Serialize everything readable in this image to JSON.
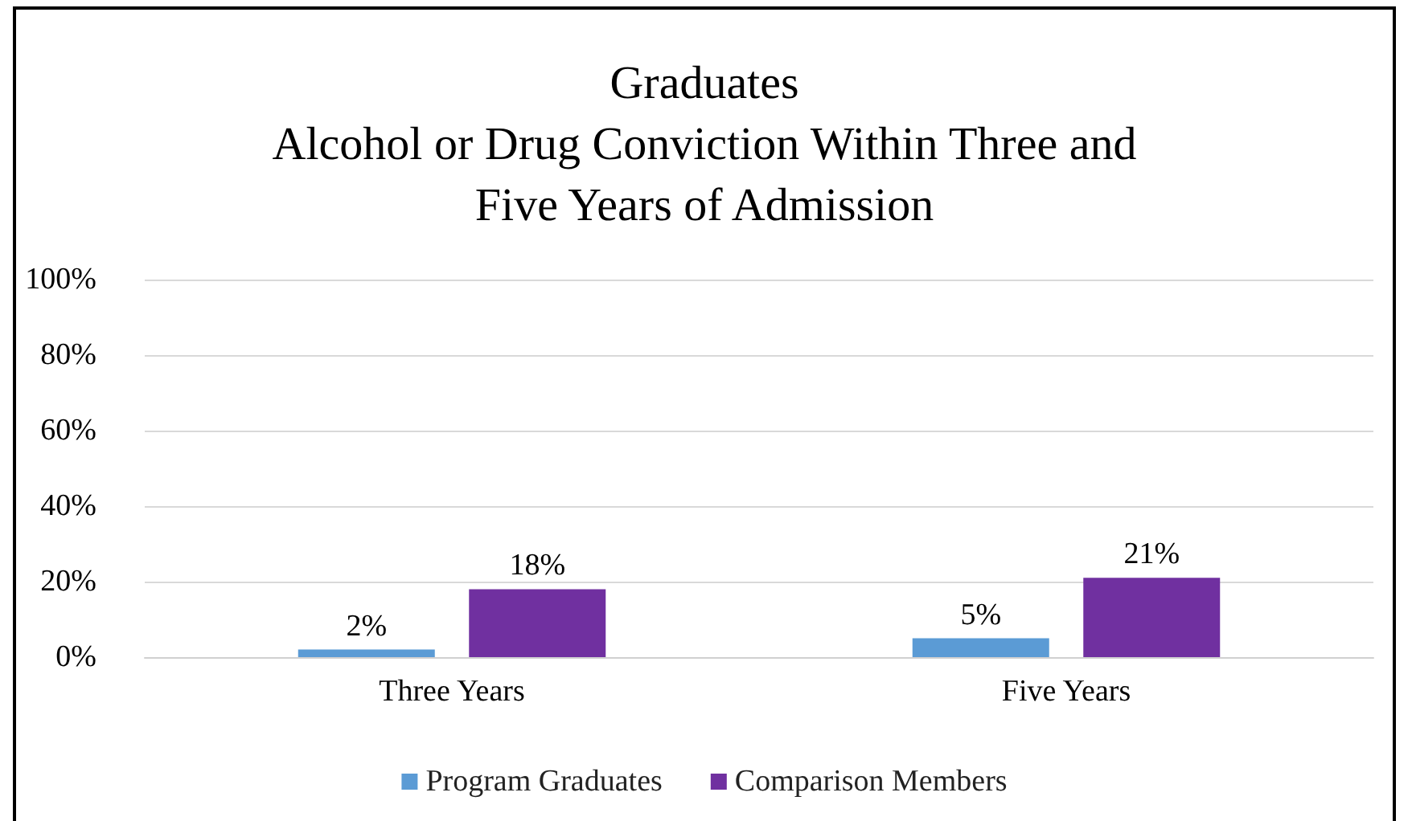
{
  "chart_data": {
    "type": "bar",
    "title": "Graduates\nAlcohol or Drug Conviction Within Three and\nFive Years of Admission",
    "categories": [
      "Three Years",
      "Five Years"
    ],
    "series": [
      {
        "name": "Program Graduates",
        "color": "#5b9bd5",
        "values": [
          2,
          5
        ],
        "value_labels": [
          "2%",
          "5%"
        ]
      },
      {
        "name": "Comparison Members",
        "color": "#7030a0",
        "values": [
          18,
          21
        ],
        "value_labels": [
          "18%",
          "21%"
        ]
      }
    ],
    "ylim": [
      0,
      100
    ],
    "yticks": [
      {
        "value": 0,
        "label": "0%"
      },
      {
        "value": 20,
        "label": "20%"
      },
      {
        "value": 40,
        "label": "40%"
      },
      {
        "value": 60,
        "label": "60%"
      },
      {
        "value": 80,
        "label": "80%"
      },
      {
        "value": 100,
        "label": "100%"
      }
    ],
    "grid": "y",
    "legend": "bottom"
  }
}
